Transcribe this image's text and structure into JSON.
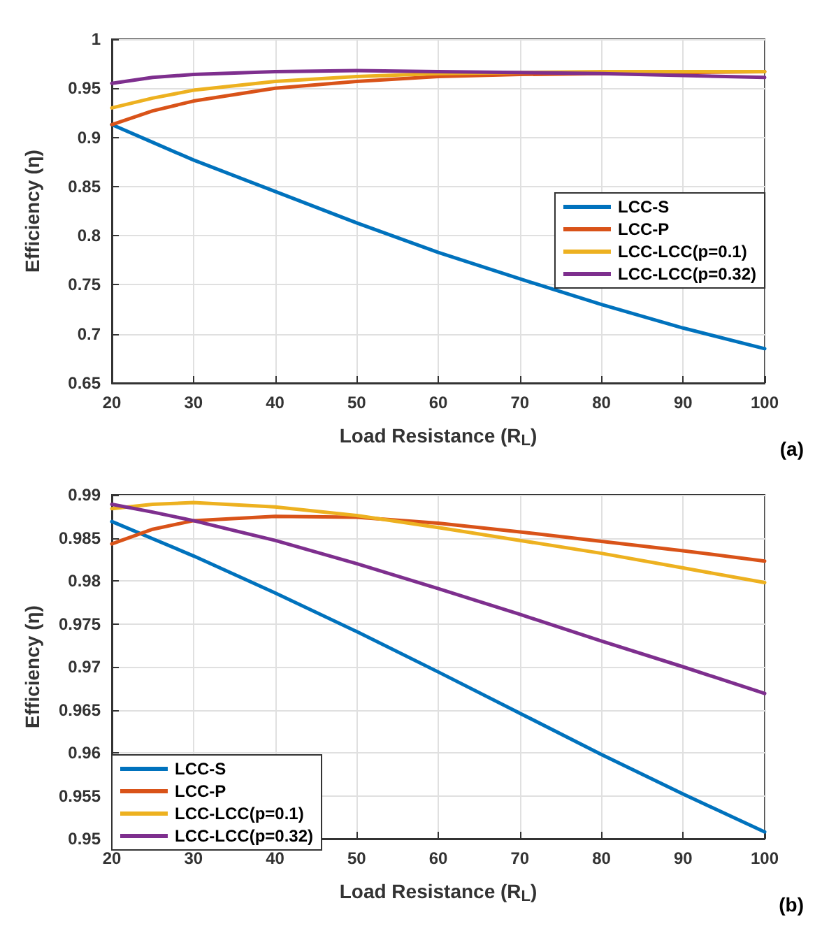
{
  "chart_data": [
    {
      "type": "line",
      "xlabel": "Load Resistance (R$_{L}$)",
      "ylabel": "Efficiency (η)",
      "annotations": [
        "(a)"
      ],
      "xlim": [
        20,
        100
      ],
      "xticks": [
        20,
        30,
        40,
        50,
        60,
        70,
        80,
        90,
        100
      ],
      "ylim": [
        0.65,
        1
      ],
      "yticks": [
        0.65,
        0.7,
        0.75,
        0.8,
        0.85,
        0.9,
        0.95,
        1
      ],
      "grid": true,
      "legend": "right",
      "marker": "none",
      "line_style": "solid",
      "x": [
        20,
        25,
        30,
        40,
        50,
        60,
        70,
        80,
        90,
        100
      ],
      "series": [
        {
          "name": "LCC-S",
          "color": "#0072bd",
          "values": [
            0.913,
            0.895,
            0.877,
            0.845,
            0.813,
            0.783,
            0.756,
            0.73,
            0.706,
            0.685
          ]
        },
        {
          "name": "LCC-P",
          "color": "#d95319",
          "values": [
            0.913,
            0.927,
            0.937,
            0.95,
            0.957,
            0.962,
            0.964,
            0.965,
            0.966,
            0.967
          ]
        },
        {
          "name": "LCC-LCC(p=0.1)",
          "color": "#edb120",
          "values": [
            0.93,
            0.94,
            0.948,
            0.957,
            0.962,
            0.965,
            0.966,
            0.967,
            0.967,
            0.967
          ]
        },
        {
          "name": "LCC-LCC(p=0.32)",
          "color": "#7e2f8e",
          "values": [
            0.955,
            0.961,
            0.964,
            0.967,
            0.968,
            0.967,
            0.966,
            0.965,
            0.963,
            0.961
          ]
        }
      ]
    },
    {
      "type": "line",
      "xlabel": "Load Resistance (R$_{L}$)",
      "ylabel": "Efficiency (η)",
      "annotations": [
        "(b)"
      ],
      "xlim": [
        20,
        100
      ],
      "xticks": [
        20,
        30,
        40,
        50,
        60,
        70,
        80,
        90,
        100
      ],
      "ylim": [
        0.95,
        0.99
      ],
      "yticks": [
        0.95,
        0.955,
        0.96,
        0.965,
        0.97,
        0.975,
        0.98,
        0.985,
        0.99
      ],
      "grid": true,
      "legend": "bottom left",
      "marker": "none",
      "line_style": "solid",
      "x": [
        20,
        25,
        30,
        40,
        50,
        60,
        70,
        80,
        90,
        100
      ],
      "series": [
        {
          "name": "LCC-S",
          "color": "#0072bd",
          "values": [
            0.9869,
            0.9849,
            0.9829,
            0.9786,
            0.9741,
            0.9694,
            0.9646,
            0.9598,
            0.9552,
            0.9508
          ]
        },
        {
          "name": "LCC-P",
          "color": "#d95319",
          "values": [
            0.9843,
            0.986,
            0.987,
            0.9875,
            0.9874,
            0.9867,
            0.9857,
            0.9846,
            0.9835,
            0.9823
          ]
        },
        {
          "name": "LCC-LCC(p=0.1)",
          "color": "#edb120",
          "values": [
            0.9884,
            0.9889,
            0.9891,
            0.9886,
            0.9876,
            0.9862,
            0.9847,
            0.9832,
            0.9815,
            0.9798
          ]
        },
        {
          "name": "LCC-LCC(p=0.32)",
          "color": "#7e2f8e",
          "values": [
            0.9889,
            0.988,
            0.987,
            0.9847,
            0.982,
            0.9791,
            0.9761,
            0.973,
            0.97,
            0.9669
          ]
        }
      ]
    }
  ]
}
